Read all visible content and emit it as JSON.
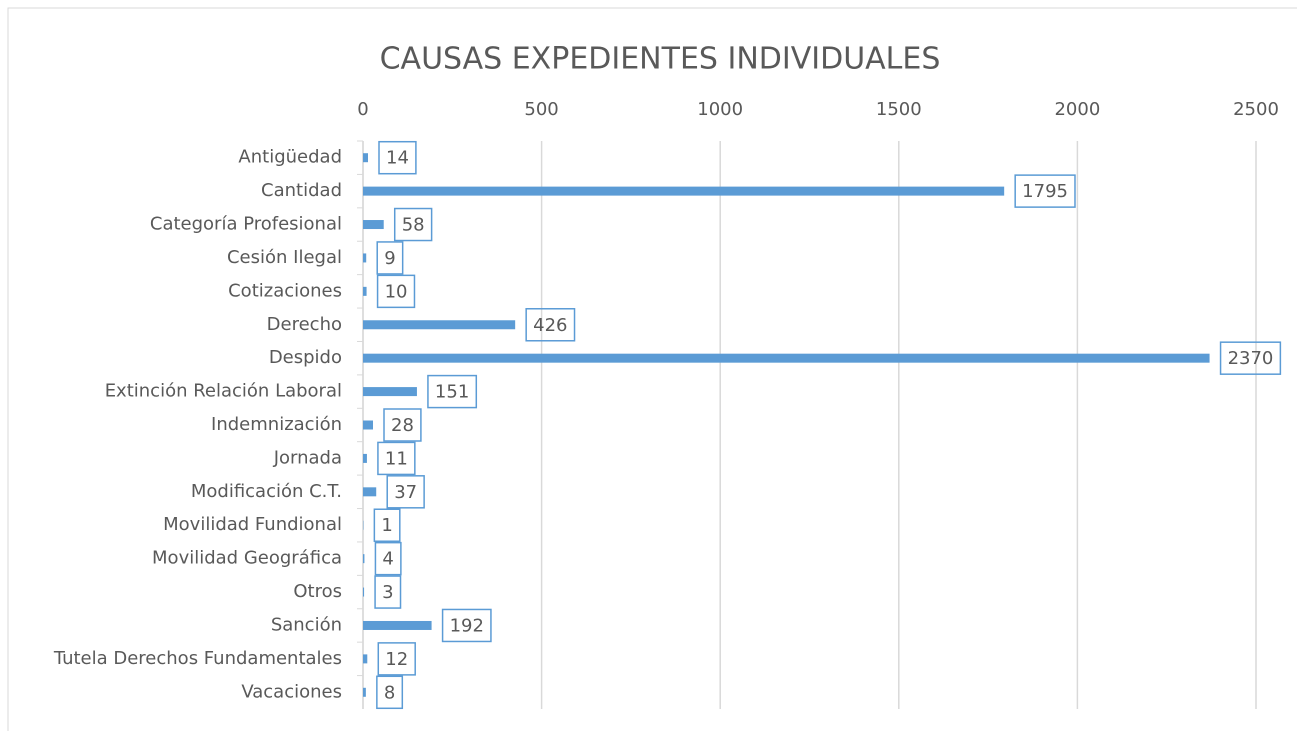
{
  "chart_data": {
    "type": "bar",
    "orientation": "horizontal",
    "title": "CAUSAS EXPEDIENTES INDIVIDUALES",
    "categories": [
      "Antigüedad",
      "Cantidad",
      "Categoría Profesional",
      "Cesión Ilegal",
      "Cotizaciones",
      "Derecho",
      "Despido",
      "Extinción Relación Laboral",
      "Indemnización",
      "Jornada",
      "Modificación C.T.",
      "Movilidad Fundional",
      "Movilidad Geográfica",
      "Otros",
      "Sanción",
      "Tutela Derechos Fundamentales",
      "Vacaciones"
    ],
    "values": [
      14,
      1795,
      58,
      9,
      10,
      426,
      2370,
      151,
      28,
      11,
      37,
      1,
      4,
      3,
      192,
      12,
      8
    ],
    "color": "#5b9bd5",
    "xlim": [
      0,
      2500
    ],
    "xticks": [
      0,
      500,
      1000,
      1500,
      2000,
      2500
    ],
    "grid": true
  }
}
